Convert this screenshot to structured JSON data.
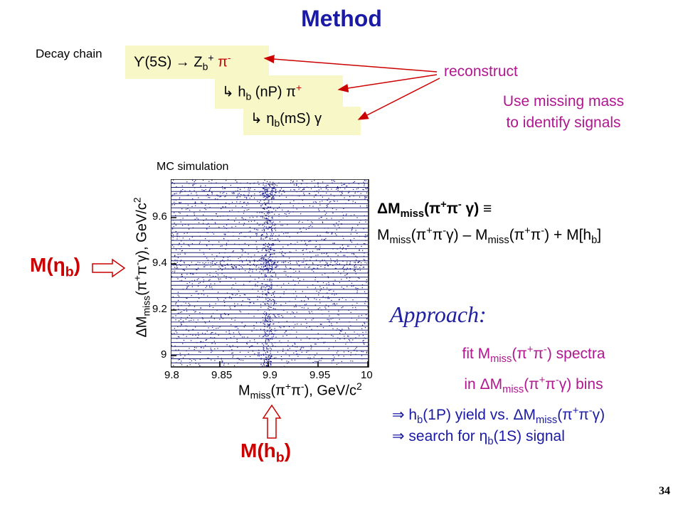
{
  "title": "Method",
  "decay_chain_label": "Decay chain",
  "chain": {
    "step1": "ϒ(5S) → Z",
    "step1_sub": "b",
    "step1_sup": "+",
    "step1_end": " π",
    "step1_end_sup": "-",
    "step2_arrow": "↳ h",
    "step2_sub": "b",
    "step2_mid": " (nP) π",
    "step2_sup": "+",
    "step3_arrow": "↳ η",
    "step3_sub": "b",
    "step3_end": "(mS) γ"
  },
  "reconstruct": "reconstruct",
  "missing_mass_line1": "Use missing mass",
  "missing_mass_line2": "to identify signals",
  "plot": {
    "mc_label": "MC simulation",
    "x_ticks": [
      "9.8",
      "9.85",
      "9.9",
      "9.95",
      "10"
    ],
    "y_ticks": [
      "9",
      "9.2",
      "9.4",
      "9.6"
    ],
    "xlabel_a": "M",
    "xlabel_sub": "miss",
    "xlabel_b": "(π",
    "xlabel_sup1": "+",
    "xlabel_c": "π",
    "xlabel_sup2": "-",
    "xlabel_d": "), GeV/c",
    "xlabel_sup3": "2",
    "ylabel_a": "ΔM",
    "ylabel_sub": "miss",
    "ylabel_b": "(π",
    "ylabel_sup1": "+",
    "ylabel_c": "π",
    "ylabel_sup2": "-",
    "ylabel_d": "γ), GeV/c",
    "ylabel_sup3": "2"
  },
  "m_etab": {
    "a": "M(η",
    "sub": "b",
    "b": ")"
  },
  "m_hb": {
    "a": "M(h",
    "sub": "b",
    "b": ")"
  },
  "definition": {
    "line1_a": "ΔM",
    "line1_sub": "miss",
    "line1_b": "(π",
    "line1_sup1": "+",
    "line1_c": "π",
    "line1_sup2": "-",
    "line1_d": " γ) ≡",
    "line2_a": "M",
    "line2_sub1": "miss",
    "line2_b": "(π",
    "line2_sup1": "+",
    "line2_c": "π",
    "line2_sup2": "-",
    "line2_d": "γ) – M",
    "line2_sub2": "miss",
    "line2_e": "(π",
    "line2_sup3": "+",
    "line2_f": "π",
    "line2_sup4": "-",
    "line2_g": ") + M[h",
    "line2_sub3": "b",
    "line2_h": "]"
  },
  "approach": "Approach:",
  "fit": {
    "line1_a": "fit M",
    "line1_sub": "miss",
    "line1_b": "(π",
    "line1_sup1": "+",
    "line1_c": "π",
    "line1_sup2": "-",
    "line1_d": ") spectra",
    "line2_a": "in ΔM",
    "line2_sub": "miss",
    "line2_b": "(π",
    "line2_sup1": "+",
    "line2_c": "π",
    "line2_sup2": "-",
    "line2_d": "γ) bins"
  },
  "result1": {
    "a": "⇒ h",
    "sub1": "b",
    "b": "(1P) yield vs. ΔM",
    "sub2": "miss",
    "c": "(π",
    "sup1": "+",
    "d": "π",
    "sup2": "-",
    "e": "γ)"
  },
  "result2": {
    "a": "⇒ search for η",
    "sub": "b",
    "b": "(1S) signal"
  },
  "page_number": "34",
  "colors": {
    "title": "#1a1aa6",
    "magenta": "#b0168f",
    "red": "#cc0000",
    "box": "#f7f7c8"
  }
}
